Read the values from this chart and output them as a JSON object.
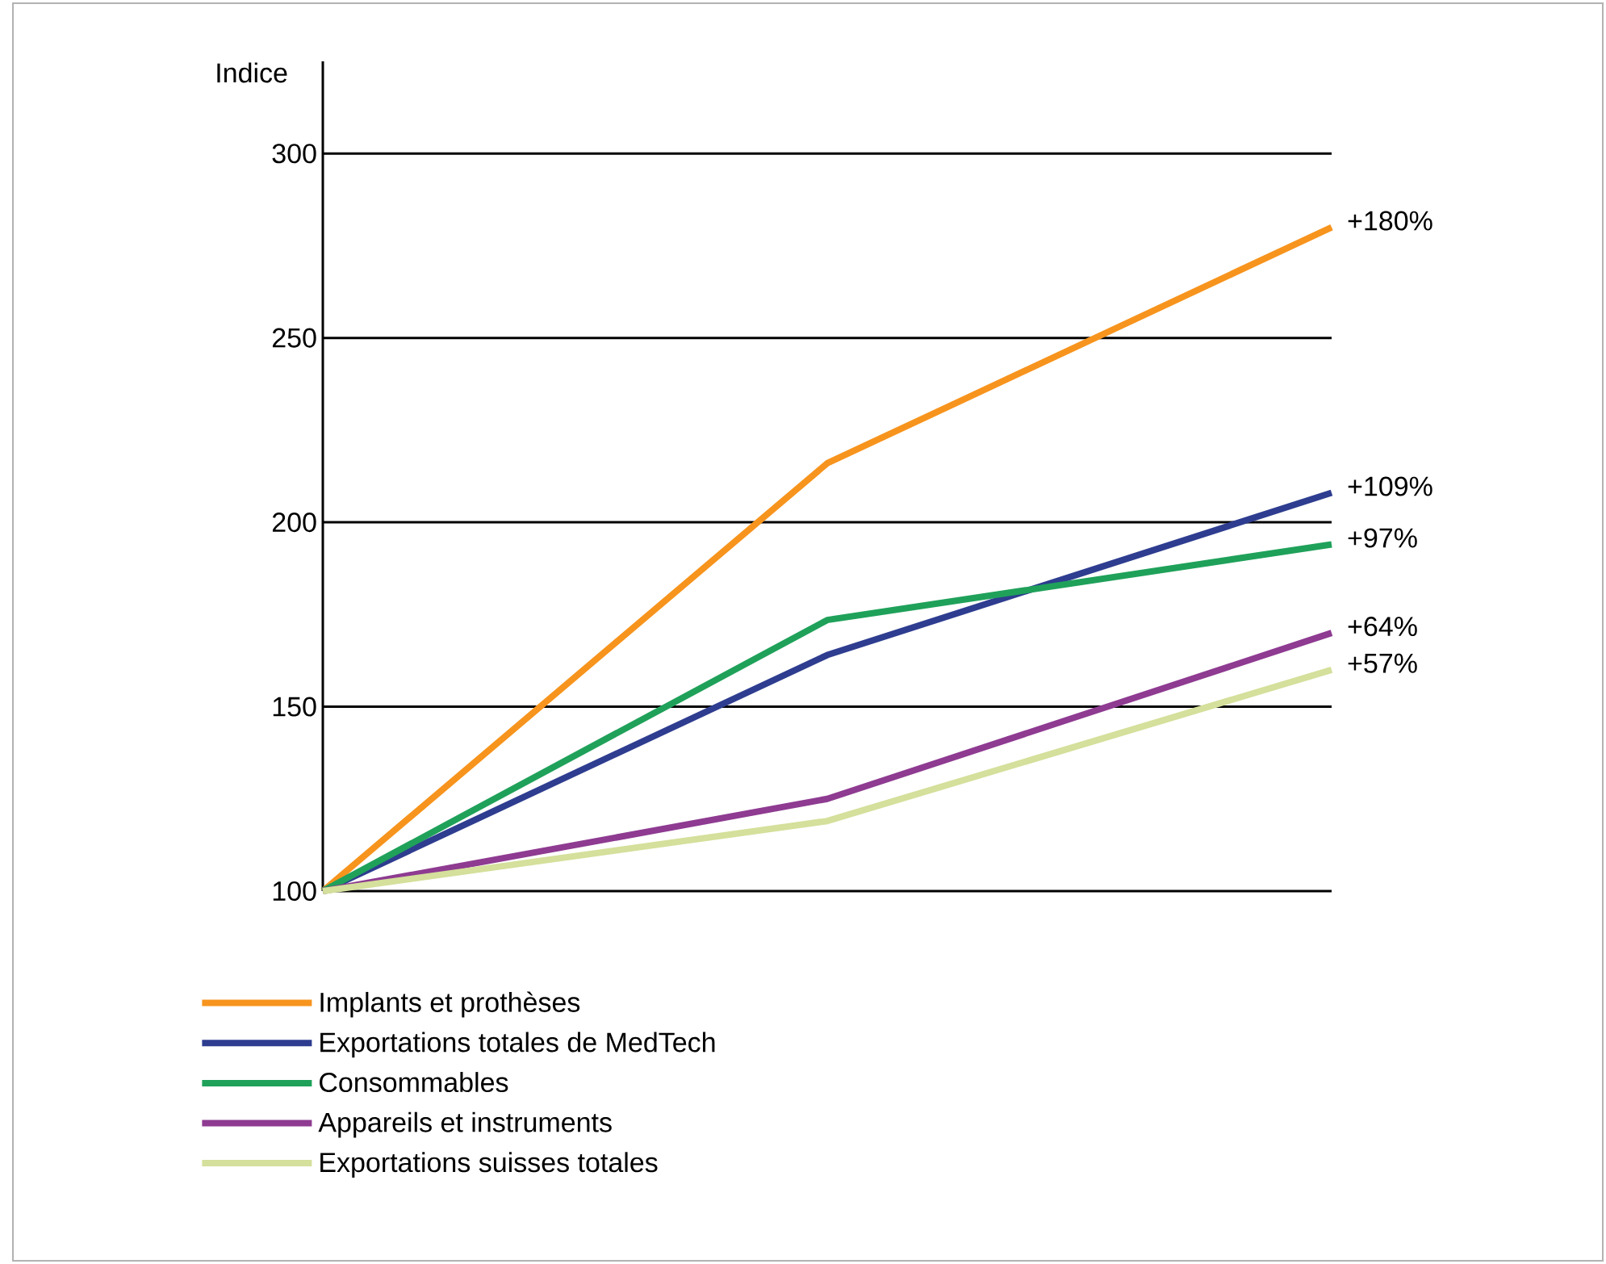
{
  "chart_data": {
    "type": "line",
    "ylabel": "Indice",
    "categories": [
      null,
      null,
      null
    ],
    "ylim": [
      100,
      325
    ],
    "yticks": [
      100,
      150,
      200,
      250,
      300
    ],
    "grid": "y",
    "legend": "bottom",
    "line_style": "solid",
    "marker": "none",
    "series": [
      {
        "name": "Implants et prothèses",
        "color": "#f7941d",
        "values": [
          100,
          216,
          280
        ]
      },
      {
        "name": "Exportations totales de MedTech",
        "color": "#2e3d8f",
        "values": [
          100,
          164,
          208
        ]
      },
      {
        "name": "Consommables",
        "color": "#1fa15a",
        "values": [
          100,
          173.5,
          194
        ]
      },
      {
        "name": "Appareils et instruments",
        "color": "#8e3b91",
        "values": [
          100,
          125,
          170
        ]
      },
      {
        "name": "Exportations suisses totales",
        "color": "#d4e09b",
        "values": [
          100,
          119,
          160
        ]
      }
    ],
    "annotations": [
      "+180%",
      "+109%",
      "+97%",
      "+64%",
      "+57%"
    ]
  }
}
